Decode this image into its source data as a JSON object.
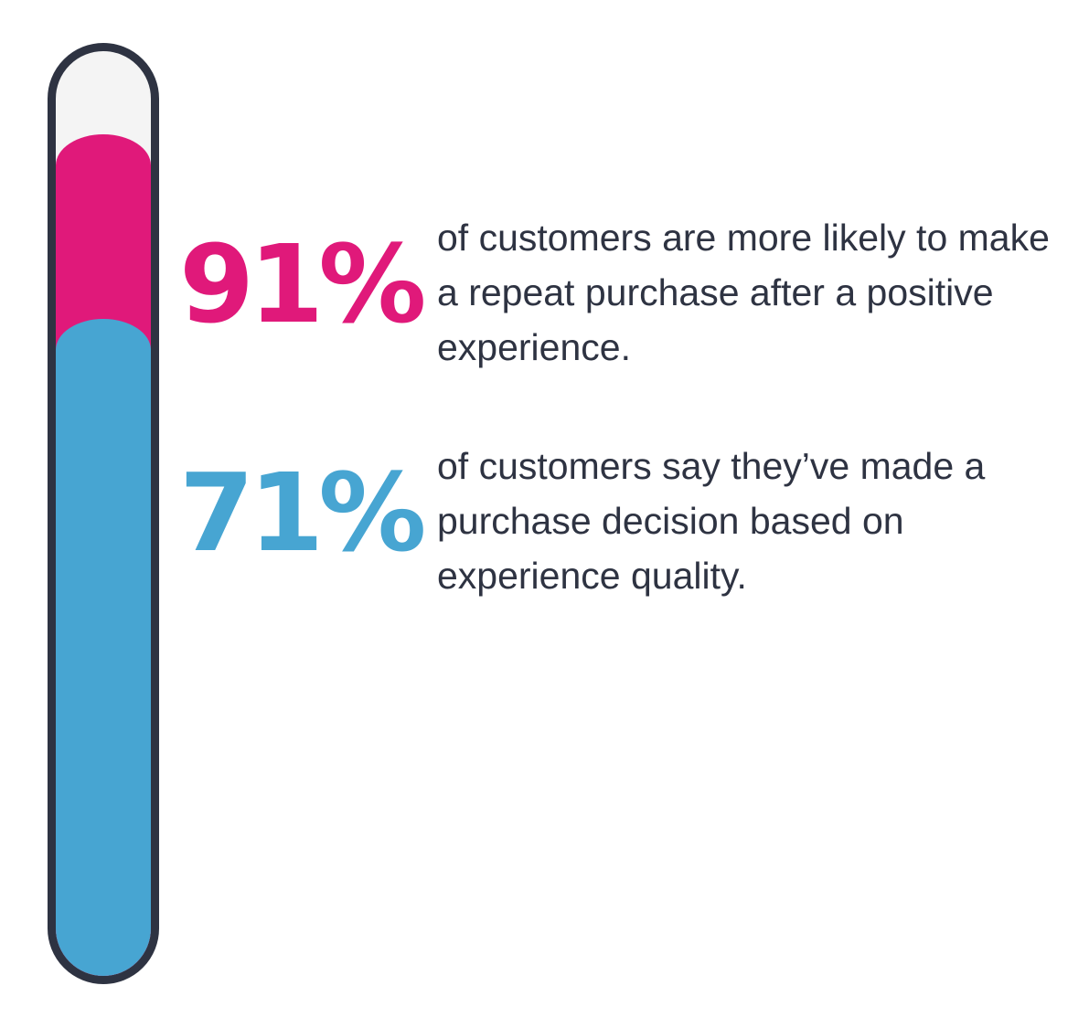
{
  "colors": {
    "outline": "#2e3342",
    "empty": "#f4f4f4",
    "text": "#2e3342"
  },
  "chart_data": {
    "type": "bar",
    "ylim": [
      0,
      100
    ],
    "series": [
      {
        "value": 91,
        "label": "91%",
        "color": "#e0197a"
      },
      {
        "value": 71,
        "label": "71%",
        "color": "#47a5d2"
      }
    ]
  },
  "stats": [
    {
      "value_label": "91%",
      "color": "#e0197a",
      "text": "of customers are more likely to make a repeat purchase after a positive experience."
    },
    {
      "value_label": "71%",
      "color": "#47a5d2",
      "text": "of customers say they’ve made a purchase decision based on experience quality."
    }
  ]
}
